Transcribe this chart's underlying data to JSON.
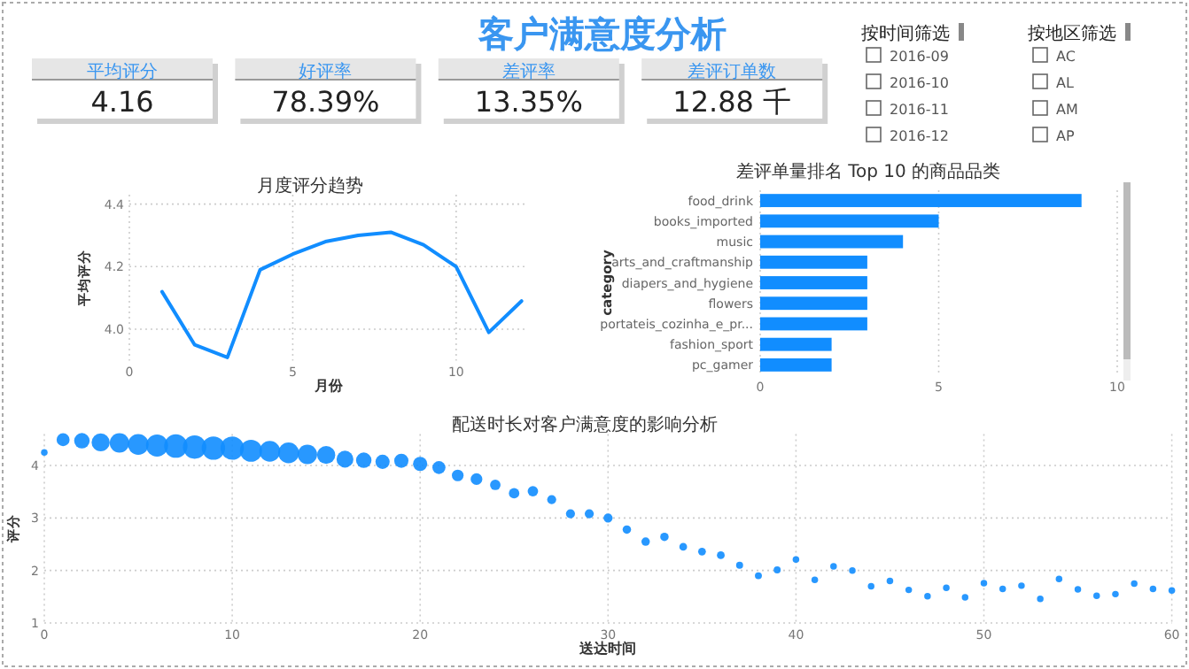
{
  "chart_data": [
    {
      "type": "other",
      "title": "客户满意度分析",
      "categories": [
        "平均评分",
        "好评率",
        "差评率",
        "差评订单数"
      ],
      "values": [
        4.16,
        78.39,
        13.35,
        12.88
      ],
      "value_labels": [
        "4.16",
        "78.39%",
        "13.35%",
        "12.88 千"
      ]
    },
    {
      "type": "other",
      "title": "按时间筛选",
      "categories": [
        "2016-09",
        "2016-10",
        "2016-11",
        "2016-12"
      ]
    },
    {
      "type": "other",
      "title": "按地区筛选",
      "categories": [
        "AC",
        "AL",
        "AM",
        "AP"
      ]
    },
    {
      "type": "line",
      "title": "月度评分趋势",
      "xlabel": "月份",
      "ylabel": "平均评分",
      "color": "#118dff",
      "grid": true,
      "x": [
        1,
        2,
        3,
        4,
        5,
        6,
        7,
        8,
        9,
        10,
        11,
        12
      ],
      "values": [
        4.12,
        3.95,
        3.91,
        4.19,
        4.24,
        4.28,
        4.3,
        4.31,
        4.27,
        4.2,
        3.99,
        4.09
      ],
      "xlim": [
        0,
        12.2
      ],
      "xticks": [
        0,
        5,
        10
      ],
      "ylim": [
        3.9,
        4.43
      ],
      "yticks": [
        {
          "value": 4,
          "label": "4.0"
        },
        4.2,
        4.4
      ]
    },
    {
      "type": "bar",
      "orientation": "horizontal",
      "title": "差评单量排名 Top 10 的商品品类",
      "ylabel": "category",
      "color": "#118dff",
      "grid": "x",
      "categories": [
        "food_drink",
        "books_imported",
        "music",
        "arts_and_craftmanship",
        "diapers_and_hygiene",
        "flowers",
        "portateis_cozinha_e_pr...",
        "fashion_sport",
        "pc_gamer"
      ],
      "values": [
        9,
        5,
        4,
        3,
        3,
        3,
        3,
        2,
        2
      ],
      "xlim": [
        0,
        10
      ],
      "xticks": [
        0,
        5,
        10
      ]
    },
    {
      "type": "bubble",
      "title": "配送时长对客户满意度的影响分析",
      "xlabel": "送达时间",
      "ylabel": "评分",
      "color": "#118dff",
      "grid": true,
      "x": [
        0,
        1,
        2,
        3,
        4,
        5,
        6,
        7,
        8,
        9,
        10,
        11,
        12,
        13,
        14,
        15,
        16,
        17,
        18,
        19,
        20,
        21,
        22,
        23,
        24,
        25,
        26,
        27,
        28,
        29,
        30,
        31,
        32,
        33,
        34,
        35,
        36,
        37,
        38,
        39,
        40,
        41,
        42,
        43,
        44,
        45,
        46,
        47,
        48,
        49,
        50,
        51,
        52,
        53,
        54,
        55,
        56,
        57,
        58,
        59,
        60
      ],
      "values": [
        4.25,
        4.49,
        4.47,
        4.44,
        4.43,
        4.4,
        4.38,
        4.37,
        4.35,
        4.33,
        4.33,
        4.28,
        4.27,
        4.24,
        4.21,
        4.2,
        4.12,
        4.1,
        4.07,
        4.09,
        4.03,
        3.96,
        3.81,
        3.74,
        3.63,
        3.47,
        3.51,
        3.35,
        3.08,
        3.08,
        3.0,
        2.78,
        2.55,
        2.64,
        2.45,
        2.36,
        2.29,
        2.1,
        1.9,
        2.01,
        2.21,
        1.82,
        2.08,
        2.0,
        1.7,
        1.8,
        1.63,
        1.51,
        1.67,
        1.49,
        1.76,
        1.65,
        1.71,
        1.46,
        1.84,
        1.64,
        1.52,
        1.55,
        1.75,
        1.65,
        1.62
      ],
      "sizes": [
        0.08,
        0.31,
        0.44,
        0.6,
        0.69,
        0.79,
        0.89,
        1,
        1,
        1,
        1,
        0.89,
        0.79,
        0.79,
        0.69,
        0.6,
        0.52,
        0.44,
        0.37,
        0.37,
        0.37,
        0.31,
        0.25,
        0.25,
        0.2,
        0.2,
        0.2,
        0.15,
        0.15,
        0.15,
        0.15,
        0.13,
        0.13,
        0.13,
        0.11,
        0.11,
        0.11,
        0.09,
        0.09,
        0.09,
        0.08,
        0.08,
        0.08,
        0.08,
        0.08,
        0.08,
        0.08,
        0.08,
        0.08,
        0.08,
        0.08,
        0.08,
        0.08,
        0.08,
        0.08,
        0.08,
        0.08,
        0.08,
        0.08,
        0.08,
        0.08
      ],
      "xlim": [
        0,
        60
      ],
      "xticks": [
        0,
        10,
        20,
        30,
        40,
        50,
        60
      ],
      "ylim": [
        1,
        4.6
      ],
      "yticks": [
        1,
        2,
        3,
        4
      ]
    }
  ]
}
